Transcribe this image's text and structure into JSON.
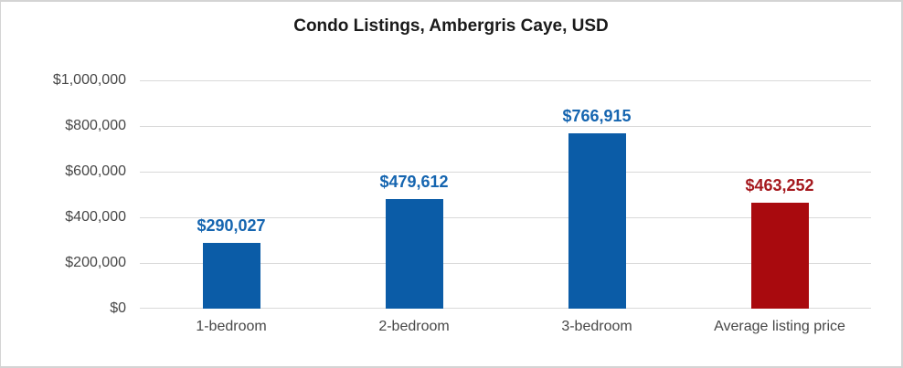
{
  "chart_data": {
    "type": "bar",
    "title": "Condo Listings, Ambergris Caye, USD",
    "categories": [
      "1-bedroom",
      "2-bedroom",
      "3-bedroom",
      "Average listing price"
    ],
    "values": [
      290027,
      479612,
      766915,
      463252
    ],
    "value_labels": [
      "$290,027",
      "$479,612",
      "$766,915",
      "$463,252"
    ],
    "bar_colors": [
      "#0b5ca7",
      "#0b5ca7",
      "#0b5ca7",
      "#a90a0e"
    ],
    "value_label_colors": [
      "#1565b0",
      "#1565b0",
      "#1565b0",
      "#a5191e"
    ],
    "ytick_labels": [
      "$0",
      "$200,000",
      "$400,000",
      "$600,000",
      "$800,000",
      "$1,000,000"
    ],
    "ylim": [
      0,
      1000000
    ],
    "xlabel": "",
    "ylabel": "",
    "grid": "horizontal",
    "gridline_color": "#d9d9d9",
    "legend": "none"
  }
}
